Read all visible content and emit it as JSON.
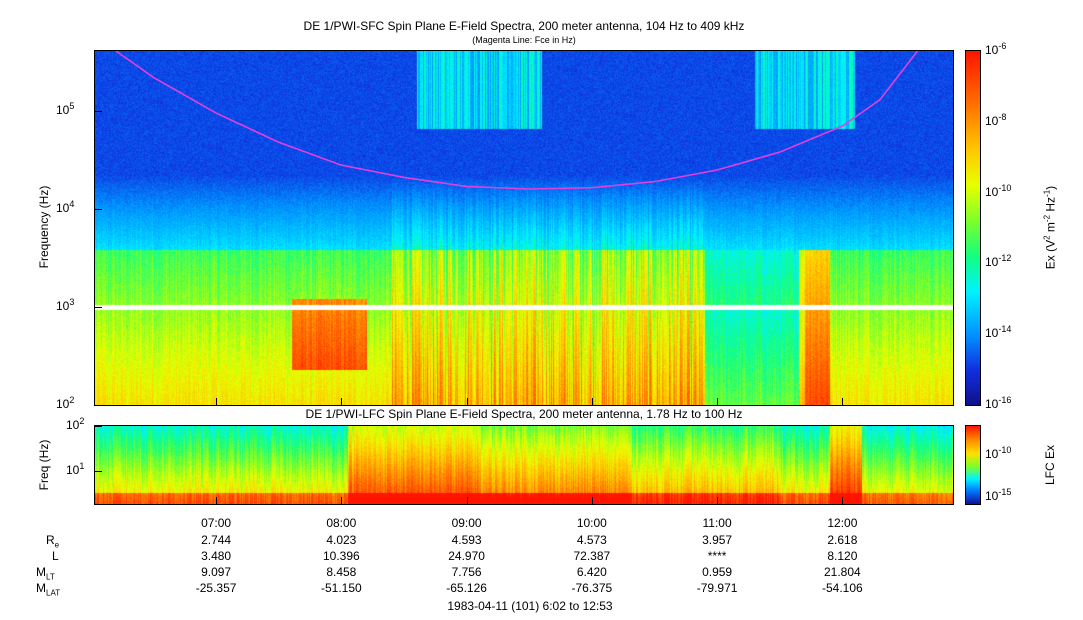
{
  "chart_data": [
    {
      "type": "heatmap",
      "title": "DE 1/PWI-SFC  Spin Plane E-Field Spectra, 200 meter antenna, 104 Hz to 409 kHz",
      "subtitle": "(Magenta Line: Fce in Hz)",
      "ylabel": "Frequency (Hz)",
      "yscale": "log",
      "ylim": [
        100,
        409000
      ],
      "yticks": [
        {
          "base": "10",
          "exp": "2"
        },
        {
          "base": "10",
          "exp": "3"
        },
        {
          "base": "10",
          "exp": "4"
        },
        {
          "base": "10",
          "exp": "5"
        }
      ],
      "colorbar": {
        "label": "Ex (V2 m-2 Hz-1)",
        "label_parts": {
          "a": "Ex (V",
          "b": "2",
          "c": " m",
          "d": "-2",
          "e": " Hz",
          "f": "-1",
          "g": ")"
        },
        "scale": "log",
        "range": [
          1e-16,
          1e-06
        ],
        "ticks": [
          {
            "base": "10",
            "exp": "-6"
          },
          {
            "base": "10",
            "exp": "-8"
          },
          {
            "base": "10",
            "exp": "-10"
          },
          {
            "base": "10",
            "exp": "-12"
          },
          {
            "base": "10",
            "exp": "-14"
          },
          {
            "base": "10",
            "exp": "-16"
          }
        ]
      },
      "fce_line": {
        "color": "#e040e0",
        "hours": [
          6.2,
          6.5,
          7.0,
          7.5,
          8.0,
          8.5,
          9.0,
          9.5,
          10.0,
          10.5,
          11.0,
          11.5,
          12.0,
          12.3,
          12.6
        ],
        "frequency_hz": [
          409000,
          220000,
          95000,
          48000,
          28000,
          21000,
          17000,
          16000,
          16500,
          19000,
          25000,
          38000,
          70000,
          130000,
          409000
        ]
      },
      "data_gap_hz": 1000
    },
    {
      "type": "heatmap",
      "title": "DE 1/PWI-LFC  Spin Plane E-Field Spectra, 200 meter antenna, 1.78 Hz to 100 Hz",
      "ylabel": "Freq (Hz)",
      "yscale": "log",
      "ylim": [
        1.78,
        100
      ],
      "yticks": [
        {
          "base": "10",
          "exp": "1"
        },
        {
          "base": "10",
          "exp": "2"
        }
      ],
      "colorbar": {
        "label": "LFC Ex",
        "scale": "log",
        "ticks": [
          {
            "base": "10",
            "exp": "-10"
          },
          {
            "base": "10",
            "exp": "-15"
          }
        ]
      }
    }
  ],
  "time_axis": {
    "start_hours": 6.0333,
    "end_hours": 12.8833,
    "ticks": [
      "07:00",
      "08:00",
      "09:00",
      "10:00",
      "11:00",
      "12:00"
    ],
    "tick_hours": [
      7,
      8,
      9,
      10,
      11,
      12
    ]
  },
  "ephemeris": {
    "rows": [
      {
        "label": "R",
        "sub": "e",
        "values": [
          "2.744",
          "4.023",
          "4.593",
          "4.573",
          "3.957",
          "2.618"
        ]
      },
      {
        "label": "L",
        "sub": "",
        "values": [
          "3.480",
          "10.396",
          "24.970",
          "72.387",
          "****",
          "8.120"
        ]
      },
      {
        "label": "M",
        "sub": "LT",
        "values": [
          "9.097",
          "8.458",
          "7.756",
          "6.420",
          "0.959",
          "21.804"
        ]
      },
      {
        "label": "M",
        "sub": "LAT",
        "values": [
          "-25.357",
          "-51.150",
          "-65.126",
          "-76.375",
          "-79.971",
          "-54.106"
        ]
      }
    ]
  },
  "footer": "1983-04-11 (101) 6:02 to 12:53"
}
